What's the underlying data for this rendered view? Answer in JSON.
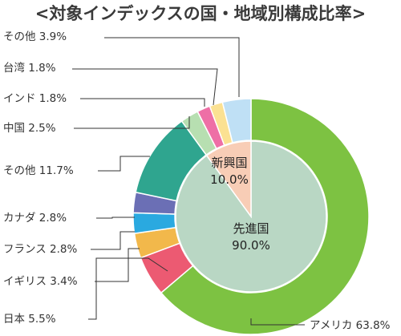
{
  "chart_data": {
    "type": "pie",
    "title": "<対象インデックスの国・地域別構成比率>",
    "outer_ring": [
      {
        "label": "アメリカ",
        "value_text": "63.8%",
        "value": 63.8,
        "color": "#7dc242"
      },
      {
        "label": "日本",
        "value_text": "5.5%",
        "value": 5.5,
        "color": "#ec5a72"
      },
      {
        "label": "イギリス",
        "value_text": "3.4%",
        "value": 3.4,
        "color": "#f2b84b"
      },
      {
        "label": "フランス",
        "value_text": "2.8%",
        "value": 2.8,
        "color": "#2aa9e0"
      },
      {
        "label": "カナダ",
        "value_text": "2.8%",
        "value": 2.8,
        "color": "#6b6fb5"
      },
      {
        "label": "その他",
        "value_text": "11.7%",
        "value": 11.7,
        "color": "#2fa58f"
      },
      {
        "label": "中国",
        "value_text": "2.5%",
        "value": 2.5,
        "color": "#b7dfb1"
      },
      {
        "label": "インド",
        "value_text": "1.8%",
        "value": 1.8,
        "color": "#ee6fa6"
      },
      {
        "label": "台湾",
        "value_text": "1.8%",
        "value": 1.8,
        "color": "#fbe192"
      },
      {
        "label": "その他",
        "value_text": "3.9%",
        "value": 3.9,
        "color": "#bfe0f5"
      }
    ],
    "inner_ring": [
      {
        "label": "先進国",
        "value_text": "90.0%",
        "value": 90.0,
        "color": "#b9d7c4"
      },
      {
        "label": "新興国",
        "value_text": "10.0%",
        "value": 10.0,
        "color": "#f8cdb6"
      }
    ]
  }
}
